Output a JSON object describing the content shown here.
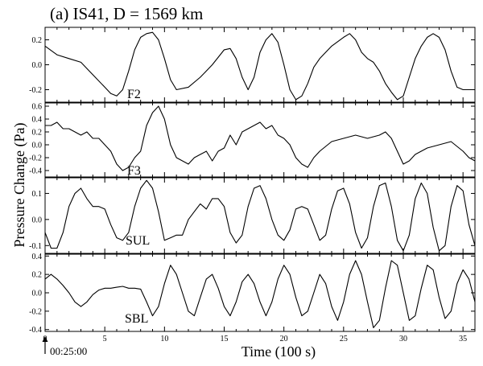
{
  "title": "(a) IS41, D = 1569 km",
  "ylabel": "Pressure Change (Pa)",
  "xlabel": "Time (100 s)",
  "start_time": "00:25:00",
  "chart_data": {
    "type": "line",
    "title": "(a) IS41, D = 1569 km",
    "xlabel": "Time (100 s)",
    "ylabel": "Pressure Change (Pa)",
    "xlim": [
      0,
      36
    ],
    "xticks": [
      "0",
      "5",
      "10",
      "15",
      "20",
      "25",
      "30",
      "35"
    ],
    "xtick_values": [
      0,
      5,
      10,
      15,
      20,
      25,
      30,
      35
    ],
    "annotation": "00:25:00",
    "panels": [
      {
        "label": "F2",
        "ylim": [
          -0.3,
          0.3
        ],
        "yticks": [
          "0.2",
          "0.0",
          "-0.2"
        ],
        "ytick_values": [
          0.2,
          0.0,
          -0.2
        ],
        "x": [
          0,
          1,
          2,
          3,
          4,
          5,
          5.5,
          6,
          6.5,
          7,
          7.5,
          8,
          8.5,
          9,
          9.5,
          10,
          10.5,
          11,
          12,
          13,
          13.5,
          14,
          15,
          15.5,
          16,
          16.5,
          17,
          17.5,
          18,
          18.5,
          19,
          19.5,
          20,
          20.5,
          21,
          21.5,
          22,
          22.5,
          23,
          24,
          25,
          25.5,
          26,
          26.5,
          27,
          27.5,
          28,
          28.5,
          29,
          29.5,
          30,
          30.5,
          31,
          31.5,
          32,
          32.5,
          33,
          33.5,
          34,
          34.5,
          35,
          35.5,
          36
        ],
        "y": [
          0.15,
          0.08,
          0.05,
          0.02,
          -0.08,
          -0.18,
          -0.23,
          -0.25,
          -0.2,
          -0.05,
          0.12,
          0.22,
          0.25,
          0.26,
          0.2,
          0.05,
          -0.12,
          -0.2,
          -0.18,
          -0.1,
          -0.05,
          0.0,
          0.12,
          0.13,
          0.05,
          -0.1,
          -0.2,
          -0.1,
          0.1,
          0.2,
          0.25,
          0.18,
          0.0,
          -0.2,
          -0.28,
          -0.25,
          -0.15,
          -0.02,
          0.05,
          0.15,
          0.22,
          0.25,
          0.2,
          0.1,
          0.05,
          0.02,
          -0.05,
          -0.15,
          -0.22,
          -0.28,
          -0.25,
          -0.1,
          0.05,
          0.15,
          0.22,
          0.25,
          0.22,
          0.12,
          -0.05,
          -0.18,
          -0.2,
          -0.2,
          -0.2
        ]
      },
      {
        "label": "F3",
        "ylim": [
          -0.5,
          0.65
        ],
        "yticks": [
          "0.6",
          "0.4",
          "0.2",
          "0.0",
          "-0.2",
          "-0.4"
        ],
        "ytick_values": [
          0.6,
          0.4,
          0.2,
          0.0,
          -0.2,
          -0.4
        ],
        "x": [
          0,
          0.5,
          1,
          1.5,
          2,
          2.5,
          3,
          3.5,
          4,
          4.5,
          5,
          5.5,
          6,
          6.5,
          7,
          7.5,
          8,
          8.5,
          9,
          9.5,
          10,
          10.5,
          11,
          11.5,
          12,
          12.5,
          13,
          13.5,
          14,
          14.5,
          15,
          15.5,
          16,
          16.5,
          17,
          17.5,
          18,
          18.5,
          19,
          19.5,
          20,
          20.5,
          21,
          21.5,
          22,
          22.5,
          23,
          24,
          25,
          26,
          27,
          28,
          28.5,
          29,
          29.5,
          30,
          30.5,
          31,
          32,
          33,
          34,
          35,
          35.5,
          36
        ],
        "y": [
          0.3,
          0.3,
          0.35,
          0.25,
          0.25,
          0.2,
          0.15,
          0.2,
          0.1,
          0.1,
          0.0,
          -0.1,
          -0.3,
          -0.4,
          -0.35,
          -0.2,
          -0.1,
          0.3,
          0.5,
          0.6,
          0.4,
          0.0,
          -0.2,
          -0.25,
          -0.3,
          -0.2,
          -0.15,
          -0.1,
          -0.25,
          -0.1,
          -0.05,
          0.15,
          0.0,
          0.2,
          0.25,
          0.3,
          0.35,
          0.25,
          0.3,
          0.15,
          0.1,
          0.0,
          -0.2,
          -0.3,
          -0.35,
          -0.2,
          -0.1,
          0.05,
          0.1,
          0.15,
          0.1,
          0.15,
          0.2,
          0.1,
          -0.1,
          -0.3,
          -0.25,
          -0.15,
          -0.05,
          0.0,
          0.05,
          -0.1,
          -0.2,
          -0.25
        ]
      },
      {
        "label": "SUL",
        "ylim": [
          -0.13,
          0.16
        ],
        "yticks": [
          "0.1",
          "0.0",
          "-0.1"
        ],
        "ytick_values": [
          0.1,
          0.0,
          -0.1
        ],
        "x": [
          0,
          0.5,
          1,
          1.5,
          2,
          2.5,
          3,
          3.5,
          4,
          4.5,
          5,
          5.5,
          6,
          6.5,
          7,
          7.5,
          8,
          8.5,
          9,
          9.5,
          10,
          10.5,
          11,
          11.5,
          12,
          12.5,
          13,
          13.5,
          14,
          14.5,
          15,
          15.5,
          16,
          16.5,
          17,
          17.5,
          18,
          18.5,
          19,
          19.5,
          20,
          20.5,
          21,
          21.5,
          22,
          22.5,
          23,
          23.5,
          24,
          24.5,
          25,
          25.5,
          26,
          26.5,
          27,
          27.5,
          28,
          28.5,
          29,
          29.5,
          30,
          30.5,
          31,
          31.5,
          32,
          32.5,
          33,
          33.5,
          34,
          34.5,
          35,
          35.5,
          36
        ],
        "y": [
          -0.05,
          -0.11,
          -0.11,
          -0.05,
          0.05,
          0.1,
          0.12,
          0.08,
          0.05,
          0.05,
          0.04,
          -0.02,
          -0.07,
          -0.08,
          -0.05,
          0.05,
          0.12,
          0.15,
          0.12,
          0.03,
          -0.08,
          -0.07,
          -0.06,
          -0.06,
          0.0,
          0.03,
          0.06,
          0.04,
          0.08,
          0.08,
          0.05,
          -0.05,
          -0.09,
          -0.06,
          0.05,
          0.12,
          0.13,
          0.08,
          0.0,
          -0.06,
          -0.08,
          -0.04,
          0.04,
          0.05,
          0.04,
          -0.02,
          -0.08,
          -0.06,
          0.04,
          0.11,
          0.12,
          0.06,
          -0.05,
          -0.11,
          -0.07,
          0.05,
          0.13,
          0.14,
          0.05,
          -0.08,
          -0.12,
          -0.06,
          0.08,
          0.14,
          0.1,
          -0.03,
          -0.12,
          -0.1,
          0.05,
          0.13,
          0.11,
          -0.02,
          -0.1
        ]
      },
      {
        "label": "SBL",
        "ylim": [
          -0.42,
          0.42
        ],
        "yticks": [
          "0.4",
          "0.2",
          "0.0",
          "-0.2",
          "-0.4"
        ],
        "ytick_values": [
          0.4,
          0.2,
          0.0,
          -0.2,
          -0.4
        ],
        "x": [
          0,
          0.5,
          1,
          1.5,
          2,
          2.5,
          3,
          3.5,
          4,
          4.5,
          5,
          5.5,
          6,
          6.5,
          7,
          7.5,
          8,
          8.5,
          9,
          9.5,
          10,
          10.5,
          11,
          11.5,
          12,
          12.5,
          13,
          13.5,
          14,
          14.5,
          15,
          15.5,
          16,
          16.5,
          17,
          17.5,
          18,
          18.5,
          19,
          19.5,
          20,
          20.5,
          21,
          21.5,
          22,
          22.5,
          23,
          23.5,
          24,
          24.5,
          25,
          25.5,
          26,
          26.5,
          27,
          27.5,
          28,
          28.5,
          29,
          29.5,
          30,
          30.5,
          31,
          31.5,
          32,
          32.5,
          33,
          33.5,
          34,
          34.5,
          35,
          35.5,
          36
        ],
        "y": [
          0.15,
          0.2,
          0.15,
          0.08,
          0.0,
          -0.1,
          -0.15,
          -0.1,
          -0.02,
          0.03,
          0.05,
          0.05,
          0.06,
          0.07,
          0.05,
          0.05,
          0.04,
          -0.1,
          -0.25,
          -0.15,
          0.1,
          0.3,
          0.2,
          0.0,
          -0.2,
          -0.25,
          -0.05,
          0.15,
          0.2,
          0.05,
          -0.15,
          -0.25,
          -0.1,
          0.12,
          0.2,
          0.1,
          -0.1,
          -0.25,
          -0.1,
          0.15,
          0.3,
          0.2,
          -0.05,
          -0.25,
          -0.2,
          0.0,
          0.2,
          0.1,
          -0.15,
          -0.3,
          -0.1,
          0.2,
          0.35,
          0.2,
          -0.1,
          -0.38,
          -0.3,
          0.05,
          0.35,
          0.3,
          0.0,
          -0.3,
          -0.25,
          0.05,
          0.3,
          0.25,
          -0.05,
          -0.28,
          -0.2,
          0.1,
          0.25,
          0.15,
          -0.1
        ]
      }
    ]
  }
}
